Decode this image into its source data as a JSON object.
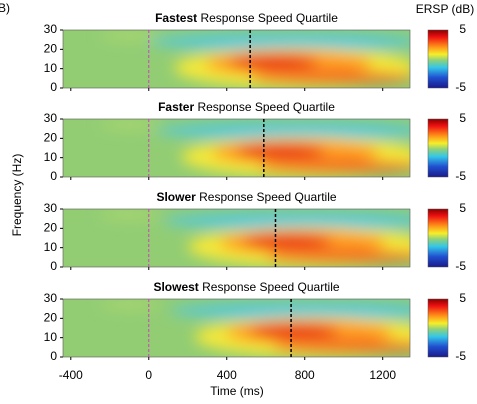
{
  "label": "B)",
  "ylabel": "Frequency (Hz)",
  "xlabel": "Time (ms)",
  "xlim": [
    -440,
    1340
  ],
  "xticks": [
    -400,
    0,
    400,
    800,
    1200
  ],
  "colorbar": {
    "label": "ERSP (dB)",
    "lim": [
      -5,
      5
    ],
    "ticks": [
      5,
      -5
    ]
  },
  "chart_data": [
    {
      "type": "heatmap",
      "title_bold": "Fastest",
      "title": "Response Speed Quartile",
      "ylim": [
        0,
        30
      ],
      "yticks": [
        0,
        10,
        20,
        30
      ],
      "rt_line": 520
    },
    {
      "type": "heatmap",
      "title_bold": "Faster",
      "title": "Response Speed Quartile",
      "ylim": [
        0,
        30
      ],
      "yticks": [
        0,
        10,
        20,
        30
      ],
      "rt_line": 590
    },
    {
      "type": "heatmap",
      "title_bold": "Slower",
      "title": "Response Speed Quartile",
      "ylim": [
        0,
        30
      ],
      "yticks": [
        0,
        10,
        20,
        30
      ],
      "rt_line": 650
    },
    {
      "type": "heatmap",
      "title_bold": "Slowest",
      "title": "Response Speed Quartile",
      "ylim": [
        0,
        30
      ],
      "yticks": [
        0,
        10,
        20,
        30
      ],
      "rt_line": 730
    }
  ]
}
